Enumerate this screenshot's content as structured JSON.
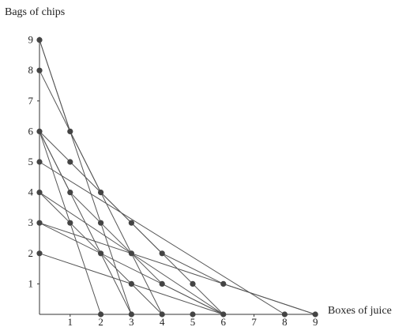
{
  "chart_data": {
    "type": "scatter",
    "title": "",
    "xlabel": "Boxes of juice",
    "ylabel": "Bags of chips",
    "xlim": [
      0,
      9
    ],
    "ylim": [
      0,
      9
    ],
    "x_ticks": [
      1,
      2,
      3,
      4,
      5,
      6,
      7,
      8,
      9
    ],
    "y_ticks": [
      1,
      2,
      3,
      4,
      5,
      6,
      7,
      8,
      9
    ],
    "grid": false,
    "points": [
      [
        0,
        9
      ],
      [
        0,
        8
      ],
      [
        0,
        6
      ],
      [
        0,
        5
      ],
      [
        0,
        4
      ],
      [
        0,
        3
      ],
      [
        0,
        2
      ],
      [
        1,
        6
      ],
      [
        1,
        5
      ],
      [
        1,
        4
      ],
      [
        1,
        3
      ],
      [
        2,
        4
      ],
      [
        2,
        3
      ],
      [
        2,
        2
      ],
      [
        3,
        3
      ],
      [
        3,
        2
      ],
      [
        3,
        1
      ],
      [
        4,
        2
      ],
      [
        4,
        1
      ],
      [
        5,
        1
      ],
      [
        6,
        1
      ],
      [
        2,
        0
      ],
      [
        3,
        0
      ],
      [
        4,
        0
      ],
      [
        5,
        0
      ],
      [
        6,
        0
      ],
      [
        8,
        0
      ],
      [
        9,
        0
      ]
    ],
    "segments": [
      [
        [
          0,
          9
        ],
        [
          3,
          0
        ]
      ],
      [
        [
          0,
          8
        ],
        [
          4,
          0
        ]
      ],
      [
        [
          0,
          6
        ],
        [
          2,
          0
        ]
      ],
      [
        [
          0,
          6
        ],
        [
          3,
          0
        ]
      ],
      [
        [
          0,
          6
        ],
        [
          6,
          0
        ]
      ],
      [
        [
          0,
          5
        ],
        [
          8,
          0
        ]
      ],
      [
        [
          0,
          4
        ],
        [
          6,
          0
        ]
      ],
      [
        [
          0,
          3
        ],
        [
          6,
          0
        ]
      ],
      [
        [
          0,
          3
        ],
        [
          9,
          0
        ]
      ],
      [
        [
          0,
          2
        ],
        [
          6,
          0
        ]
      ],
      [
        [
          0,
          9
        ],
        [
          1,
          6
        ],
        [
          2,
          4
        ],
        [
          3,
          3
        ],
        [
          4,
          2
        ],
        [
          6,
          1
        ],
        [
          9,
          0
        ]
      ],
      [
        [
          0,
          6
        ],
        [
          1,
          4
        ],
        [
          2,
          3
        ],
        [
          3,
          2
        ],
        [
          4,
          1
        ],
        [
          6,
          0
        ]
      ],
      [
        [
          0,
          4
        ],
        [
          1,
          3
        ],
        [
          2,
          2
        ],
        [
          3,
          1
        ],
        [
          4,
          0
        ]
      ]
    ]
  }
}
